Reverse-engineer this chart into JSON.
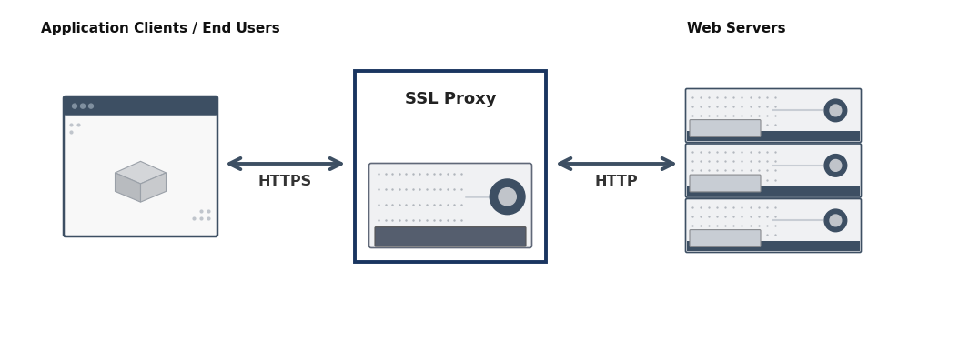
{
  "bg_color": "#ffffff",
  "title_left": "Application Clients / End Users",
  "title_right": "Web Servers",
  "label_https": "HTTPS",
  "label_http": "HTTP",
  "label_proxy": "SSL Proxy",
  "dark_color": "#3d4f63",
  "box_color": "#1a3560",
  "light_gray": "#c8cdd4",
  "lighter_gray": "#ecedef",
  "mid_gray": "#9aa0a8",
  "figsize": [
    10.54,
    3.76
  ],
  "dpi": 100
}
